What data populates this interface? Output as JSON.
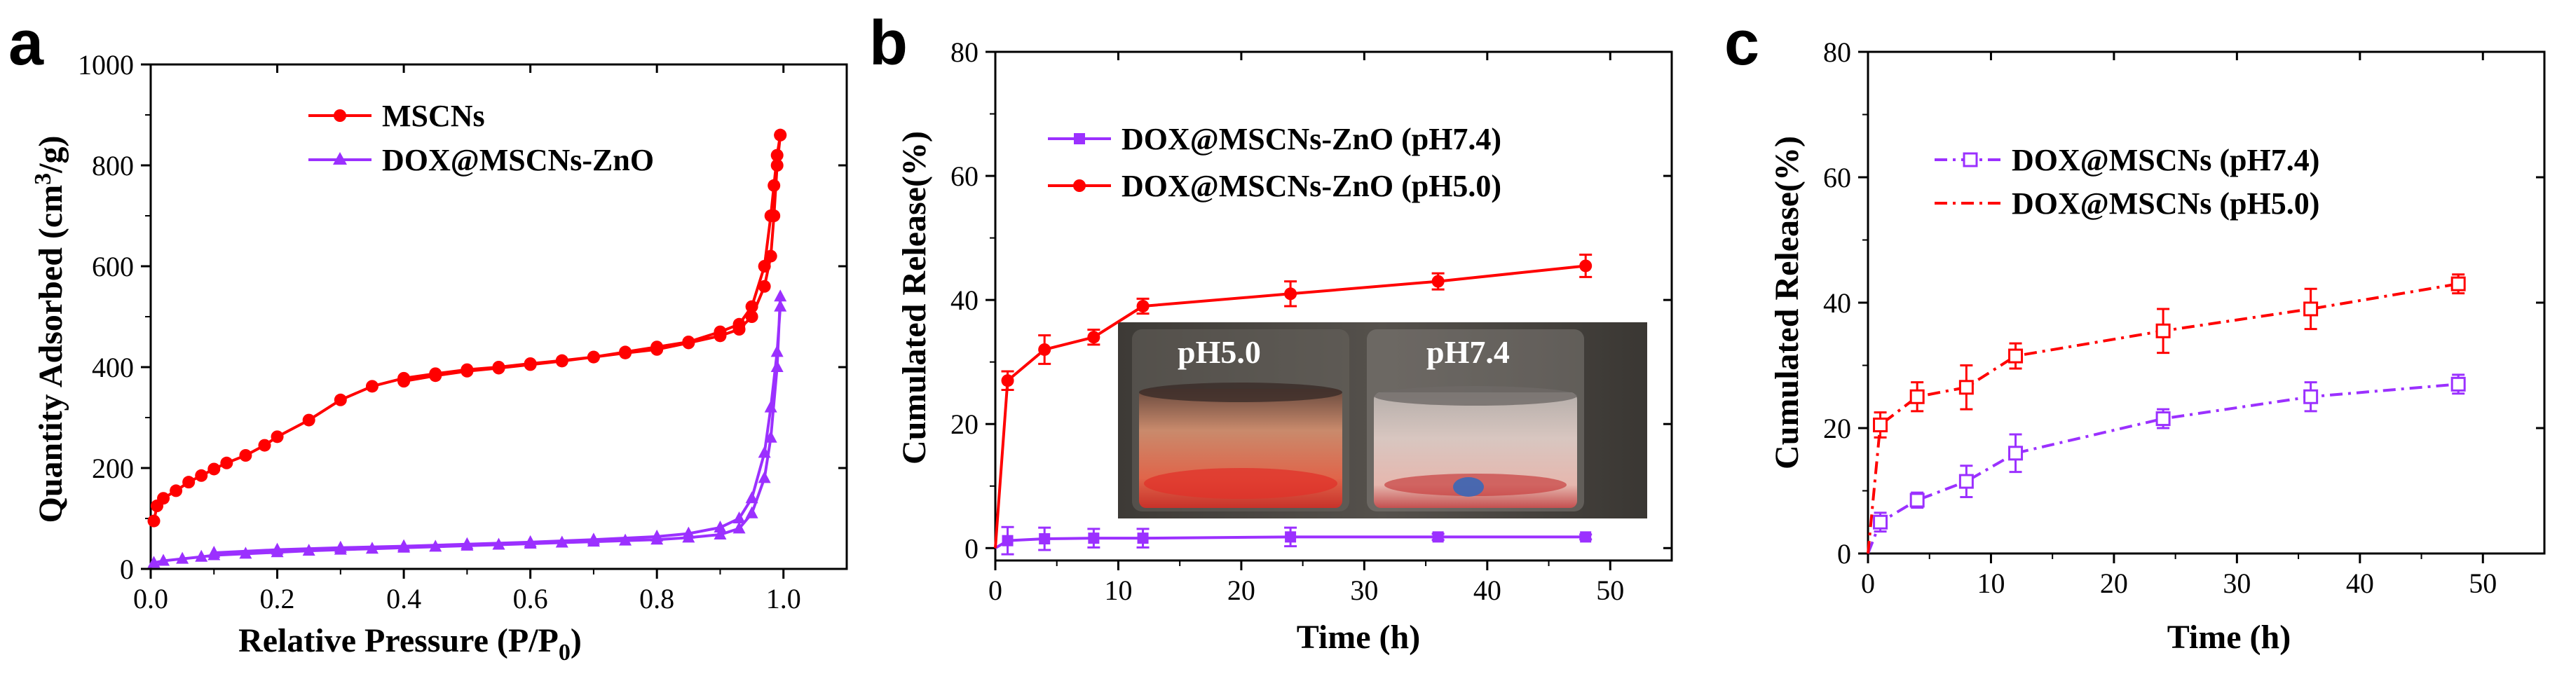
{
  "chart_data": [
    {
      "id": "a",
      "panel_letter": "a",
      "type": "line",
      "xlabel": "Relative Pressure (P/P",
      "xlabel_sub": "0",
      "xlabel_end": ")",
      "ylabel": "Quantity Adsorbed (cm",
      "ylabel_sup": "3",
      "ylabel_end": "/g)",
      "xlim": [
        0,
        1.1
      ],
      "ylim": [
        0,
        1000
      ],
      "xticks": [
        0.0,
        0.2,
        0.4,
        0.6,
        0.8,
        1.0
      ],
      "xtick_labels": [
        "0.0",
        "0.2",
        "0.4",
        "0.6",
        "0.8",
        "1.0"
      ],
      "yticks": [
        0,
        200,
        400,
        600,
        800,
        1000
      ],
      "ytick_labels": [
        "0",
        "200",
        "400",
        "600",
        "800",
        "1000"
      ],
      "legend_position": "top-center",
      "series": [
        {
          "name": "MSCNs",
          "color": "#ff0000",
          "marker": "circle",
          "x": [
            0.005,
            0.01,
            0.02,
            0.04,
            0.06,
            0.08,
            0.1,
            0.12,
            0.15,
            0.18,
            0.2,
            0.25,
            0.3,
            0.35,
            0.4,
            0.45,
            0.5,
            0.55,
            0.6,
            0.65,
            0.7,
            0.75,
            0.8,
            0.85,
            0.9,
            0.93,
            0.95,
            0.97,
            0.98,
            0.985,
            0.99,
            0.995,
            0.995,
            0.99,
            0.985,
            0.98,
            0.97,
            0.95,
            0.93,
            0.9,
            0.85,
            0.8,
            0.75,
            0.7,
            0.65,
            0.6,
            0.55,
            0.5,
            0.45,
            0.4
          ],
          "y": [
            95,
            125,
            140,
            155,
            172,
            185,
            198,
            210,
            225,
            245,
            262,
            295,
            335,
            362,
            378,
            387,
            395,
            400,
            407,
            413,
            420,
            428,
            435,
            448,
            462,
            475,
            500,
            560,
            620,
            700,
            800,
            860,
            860,
            820,
            760,
            700,
            600,
            520,
            485,
            470,
            450,
            440,
            430,
            420,
            412,
            405,
            398,
            392,
            383,
            372
          ]
        },
        {
          "name": "DOX@MSCNs-ZnO",
          "color": "#9b30ff",
          "marker": "triangle",
          "x": [
            0.005,
            0.02,
            0.05,
            0.08,
            0.1,
            0.15,
            0.2,
            0.25,
            0.3,
            0.35,
            0.4,
            0.45,
            0.5,
            0.55,
            0.6,
            0.65,
            0.7,
            0.75,
            0.8,
            0.85,
            0.9,
            0.93,
            0.95,
            0.97,
            0.98,
            0.99,
            0.995,
            0.995,
            0.99,
            0.98,
            0.97,
            0.95,
            0.93,
            0.9,
            0.85,
            0.8,
            0.7,
            0.6,
            0.5,
            0.4,
            0.3,
            0.2,
            0.1
          ],
          "y": [
            12,
            16,
            20,
            24,
            27,
            30,
            33,
            36,
            38,
            40,
            42,
            44,
            46,
            48,
            50,
            52,
            54,
            56,
            58,
            62,
            68,
            80,
            110,
            180,
            260,
            400,
            540,
            520,
            430,
            320,
            230,
            140,
            100,
            82,
            70,
            64,
            58,
            53,
            49,
            45,
            42,
            38,
            32
          ]
        }
      ]
    },
    {
      "id": "b",
      "panel_letter": "b",
      "type": "line",
      "xlabel": "Time (h)",
      "ylabel": "Cumulated Release(%)",
      "xlim": [
        0,
        55
      ],
      "ylim": [
        -2,
        80
      ],
      "xticks": [
        0,
        10,
        20,
        30,
        40,
        50
      ],
      "xtick_labels": [
        "0",
        "10",
        "20",
        "30",
        "40",
        "50"
      ],
      "yticks": [
        0,
        20,
        40,
        60,
        80
      ],
      "ytick_labels": [
        "0",
        "20",
        "40",
        "60",
        "80"
      ],
      "legend_position": "top-left",
      "inset": {
        "description": "photo of two vials",
        "left_label": "pH5.0",
        "right_label": "pH7.4"
      },
      "series": [
        {
          "name": "DOX@MSCNs-ZnO (pH7.4)",
          "color": "#9b30ff",
          "marker": "square",
          "x": [
            0,
            1,
            4,
            8,
            12,
            24,
            36,
            48
          ],
          "y": [
            0,
            1.2,
            1.5,
            1.6,
            1.6,
            1.8,
            1.8,
            1.8
          ],
          "err": [
            0,
            2.2,
            1.8,
            1.5,
            1.5,
            1.5,
            0.5,
            0.4
          ]
        },
        {
          "name": "DOX@MSCNs-ZnO (pH5.0)",
          "color": "#ff0000",
          "marker": "circle",
          "x": [
            0,
            1,
            4,
            8,
            12,
            24,
            36,
            48
          ],
          "y": [
            0,
            27,
            32,
            34,
            39,
            41,
            43,
            45.5
          ],
          "err": [
            0,
            1.5,
            2.3,
            1.2,
            1.2,
            2.0,
            1.3,
            1.8
          ]
        }
      ]
    },
    {
      "id": "c",
      "panel_letter": "c",
      "type": "line",
      "xlabel": "Time (h)",
      "ylabel": "Cumulated Release(%)",
      "xlim": [
        0,
        55
      ],
      "ylim": [
        0,
        80
      ],
      "xticks": [
        0,
        10,
        20,
        30,
        40,
        50
      ],
      "xtick_labels": [
        "0",
        "10",
        "20",
        "30",
        "40",
        "50"
      ],
      "yticks": [
        0,
        20,
        40,
        60,
        80
      ],
      "ytick_labels": [
        "0",
        "20",
        "40",
        "60",
        "80"
      ],
      "legend_position": "top-left",
      "series": [
        {
          "name": "DOX@MSCNs (pH7.4)",
          "color": "#9b30ff",
          "marker": "open-square",
          "linestyle": "dash-dot",
          "x": [
            0,
            1,
            4,
            8,
            12,
            24,
            36,
            48
          ],
          "y": [
            0,
            5,
            8.5,
            11.5,
            16,
            21.5,
            25,
            27
          ],
          "err": [
            0,
            1.5,
            1.2,
            2.5,
            3.0,
            1.5,
            2.3,
            1.5
          ]
        },
        {
          "name": "DOX@MSCNs (pH5.0)",
          "color": "#ff0000",
          "marker": "open-square",
          "linestyle": "dash-dot",
          "x": [
            0,
            1,
            4,
            8,
            12,
            24,
            36,
            48
          ],
          "y": [
            0,
            20.5,
            25,
            26.5,
            31.5,
            35.5,
            39,
            43
          ],
          "err": [
            0,
            2.0,
            2.3,
            3.5,
            2.0,
            3.5,
            3.2,
            1.5
          ]
        }
      ]
    }
  ]
}
